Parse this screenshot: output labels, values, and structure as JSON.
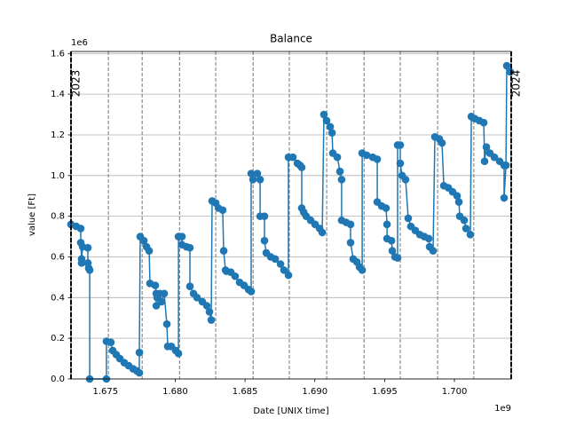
{
  "chart_data": {
    "type": "line",
    "title": "Balance",
    "x_label": "Date [UNIX time]",
    "y_label": "value [Ft]",
    "x_offset_label": "1e9",
    "y_offset_label": "1e6",
    "color": "#1f77b4",
    "grid": true,
    "xlim": [
      1672531200,
      1704067200
    ],
    "ylim": [
      0,
      1610000
    ],
    "xticks": [
      {
        "value": 1675000000,
        "label": "1.675"
      },
      {
        "value": 1680000000,
        "label": "1.680"
      },
      {
        "value": 1685000000,
        "label": "1.685"
      },
      {
        "value": 1690000000,
        "label": "1.690"
      },
      {
        "value": 1695000000,
        "label": "1.695"
      },
      {
        "value": 1700000000,
        "label": "1.700"
      }
    ],
    "yticks": [
      {
        "value": 0,
        "label": "0.0"
      },
      {
        "value": 200000,
        "label": "0.2"
      },
      {
        "value": 400000,
        "label": "0.4"
      },
      {
        "value": 600000,
        "label": "0.6"
      },
      {
        "value": 800000,
        "label": "0.8"
      },
      {
        "value": 1000000,
        "label": "1.0"
      },
      {
        "value": 1200000,
        "label": "1.2"
      },
      {
        "value": 1400000,
        "label": "1.4"
      },
      {
        "value": 1600000,
        "label": "1.6"
      }
    ],
    "month_lines": [
      1675209600,
      1677628800,
      1680307200,
      1682899200,
      1685577600,
      1688169600,
      1690848000,
      1693526400,
      1696118400,
      1698796800,
      1701388800
    ],
    "year_lines": [
      {
        "value": 1672531200,
        "label": "2023"
      },
      {
        "value": 1704067200,
        "label": "2024"
      }
    ],
    "x": [
      1672530000,
      1672910000,
      1673230000,
      1673230000,
      1673290000,
      1673290000,
      1673360000,
      1673740000,
      1673740000,
      1673800000,
      1673870000,
      1673870000,
      1675070000,
      1675070000,
      1675390000,
      1675520000,
      1675770000,
      1676030000,
      1676350000,
      1676660000,
      1676980000,
      1677240000,
      1677430000,
      1677430000,
      1677490000,
      1677750000,
      1677940000,
      1678130000,
      1678190000,
      1678570000,
      1678640000,
      1678640000,
      1678700000,
      1678890000,
      1679020000,
      1679210000,
      1679400000,
      1679460000,
      1679720000,
      1680030000,
      1680230000,
      1680230000,
      1680480000,
      1680480000,
      1680800000,
      1681050000,
      1681050000,
      1681310000,
      1681560000,
      1681940000,
      1682260000,
      1682450000,
      1682580000,
      1682640000,
      1682900000,
      1683090000,
      1683400000,
      1683470000,
      1683600000,
      1683660000,
      1683980000,
      1684290000,
      1684610000,
      1684930000,
      1685250000,
      1685440000,
      1685440000,
      1685570000,
      1685880000,
      1686080000,
      1686080000,
      1686390000,
      1686390000,
      1686520000,
      1686840000,
      1687160000,
      1687540000,
      1687790000,
      1688110000,
      1688110000,
      1688430000,
      1688750000,
      1688940000,
      1689060000,
      1689060000,
      1689200000,
      1689380000,
      1689700000,
      1690020000,
      1690340000,
      1690530000,
      1690650000,
      1690840000,
      1691100000,
      1691230000,
      1691290000,
      1691610000,
      1691800000,
      1691920000,
      1691920000,
      1692240000,
      1692560000,
      1692560000,
      1692750000,
      1693010000,
      1693200000,
      1693390000,
      1693390000,
      1693710000,
      1694150000,
      1694470000,
      1694470000,
      1694790000,
      1695100000,
      1695170000,
      1695170000,
      1695490000,
      1695550000,
      1695740000,
      1695930000,
      1695930000,
      1696120000,
      1696120000,
      1696250000,
      1696500000,
      1696690000,
      1696880000,
      1697200000,
      1697520000,
      1697840000,
      1698160000,
      1698220000,
      1698470000,
      1698600000,
      1698920000,
      1699110000,
      1699240000,
      1699560000,
      1699870000,
      1700190000,
      1700320000,
      1700380000,
      1700700000,
      1700830000,
      1701140000,
      1701210000,
      1701460000,
      1701780000,
      1702100000,
      1702160000,
      1702290000,
      1702540000,
      1702860000,
      1703240000,
      1703560000,
      1703560000,
      1703690000,
      1703750000,
      1704000000
    ],
    "values": [
      760000,
      750000,
      740000,
      670000,
      590000,
      570000,
      650000,
      645000,
      570000,
      545000,
      535000,
      0,
      0,
      185000,
      180000,
      140000,
      120000,
      100000,
      80000,
      65000,
      50000,
      40000,
      30000,
      130000,
      700000,
      680000,
      650000,
      630000,
      470000,
      460000,
      420000,
      360000,
      400000,
      420000,
      380000,
      420000,
      270000,
      160000,
      160000,
      140000,
      125000,
      700000,
      700000,
      660000,
      650000,
      645000,
      455000,
      420000,
      400000,
      380000,
      360000,
      330000,
      290000,
      875000,
      865000,
      840000,
      830000,
      630000,
      535000,
      530000,
      525000,
      505000,
      475000,
      460000,
      440000,
      430000,
      1010000,
      980000,
      1010000,
      980000,
      800000,
      800000,
      680000,
      620000,
      600000,
      590000,
      565000,
      535000,
      510000,
      1090000,
      1090000,
      1060000,
      1050000,
      1040000,
      840000,
      820000,
      800000,
      780000,
      760000,
      740000,
      720000,
      1300000,
      1270000,
      1240000,
      1210000,
      1110000,
      1090000,
      1020000,
      980000,
      780000,
      770000,
      760000,
      670000,
      590000,
      575000,
      550000,
      535000,
      1110000,
      1100000,
      1090000,
      1080000,
      870000,
      850000,
      840000,
      760000,
      690000,
      680000,
      630000,
      600000,
      595000,
      1150000,
      1150000,
      1060000,
      1000000,
      980000,
      790000,
      750000,
      730000,
      710000,
      700000,
      690000,
      650000,
      630000,
      1190000,
      1180000,
      1160000,
      950000,
      940000,
      920000,
      900000,
      870000,
      800000,
      780000,
      740000,
      710000,
      1290000,
      1280000,
      1270000,
      1260000,
      1070000,
      1140000,
      1110000,
      1090000,
      1070000,
      1050000,
      890000,
      1050000,
      1540000,
      1510000
    ]
  }
}
